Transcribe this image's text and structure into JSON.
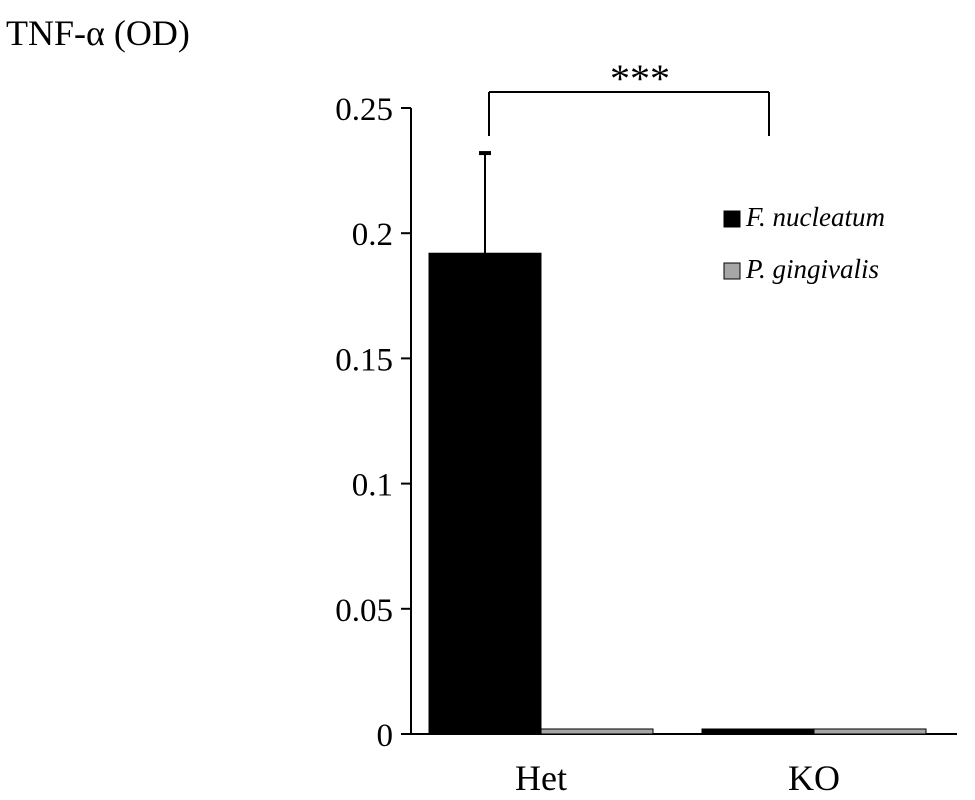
{
  "chart_data": {
    "type": "bar",
    "ylabel": "TNF-α (OD)",
    "xlabel": "",
    "ylim": [
      0,
      0.25
    ],
    "yticks": [
      0,
      0.05,
      0.1,
      0.15,
      0.2,
      0.25
    ],
    "ytick_labels": [
      "0",
      "0.05",
      "0.1",
      "0.15",
      "0.2",
      "0.25"
    ],
    "categories": [
      "Het",
      "KO"
    ],
    "series": [
      {
        "name": "F. nucleatum",
        "color": "#000000",
        "values": [
          0.192,
          0.002
        ],
        "error_upper": [
          0.04,
          null
        ]
      },
      {
        "name": "P. gingivalis",
        "color": "#a6a6a6",
        "values": [
          0.002,
          0.002
        ],
        "error_upper": [
          null,
          null
        ]
      }
    ],
    "significance": {
      "label": "***",
      "between": [
        "Het",
        "KO"
      ]
    },
    "legend": "top-right",
    "grid": false
  }
}
